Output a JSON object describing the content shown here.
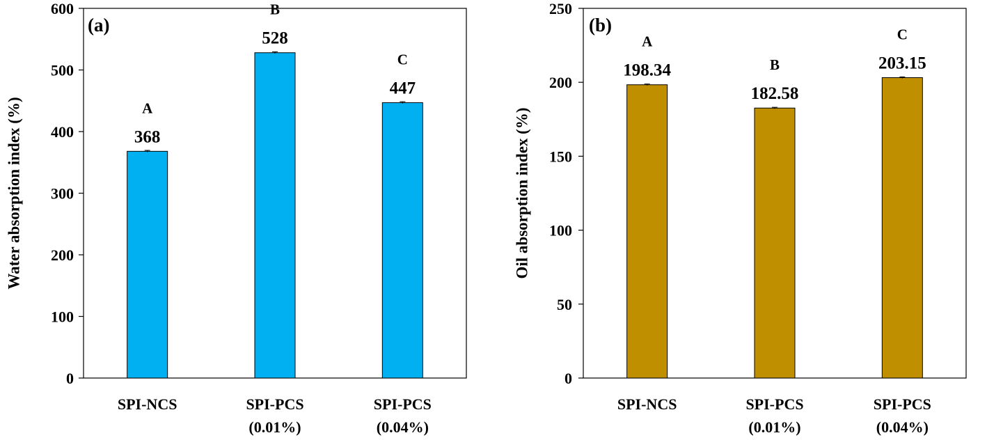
{
  "chart_data": [
    {
      "type": "bar",
      "panel_label": "(a)",
      "title": "",
      "xlabel": "",
      "ylabel": "Water absorption index (%)",
      "ylim": [
        0,
        600
      ],
      "yticks": [
        0,
        100,
        200,
        300,
        400,
        500,
        600
      ],
      "grid": false,
      "categories": [
        {
          "line1": "SPI-NCS",
          "line2": ""
        },
        {
          "line1": "SPI-PCS",
          "line2": "(0.01%)"
        },
        {
          "line1": "SPI-PCS",
          "line2": "(0.04%)"
        }
      ],
      "values": [
        368,
        528,
        447
      ],
      "value_labels": [
        "368",
        "528",
        "447"
      ],
      "letters": [
        "A",
        "B",
        "C"
      ],
      "errors": [
        1.5,
        1.5,
        1.5
      ],
      "bar_color": "#00B0F0"
    },
    {
      "type": "bar",
      "panel_label": "(b)",
      "title": "",
      "xlabel": "",
      "ylabel": "Oil absorption index (%)",
      "ylim": [
        0,
        250
      ],
      "yticks": [
        0,
        50,
        100,
        150,
        200,
        250
      ],
      "grid": false,
      "categories": [
        {
          "line1": "SPI-NCS",
          "line2": ""
        },
        {
          "line1": "SPI-PCS",
          "line2": "(0.01%)"
        },
        {
          "line1": "SPI-PCS",
          "line2": "(0.04%)"
        }
      ],
      "values": [
        198.34,
        182.58,
        203.15
      ],
      "value_labels": [
        "198.34",
        "182.58",
        "203.15"
      ],
      "letters": [
        "A",
        "B",
        "C"
      ],
      "errors": [
        0.5,
        0.5,
        0.5
      ],
      "bar_color": "#BF8F00"
    }
  ]
}
